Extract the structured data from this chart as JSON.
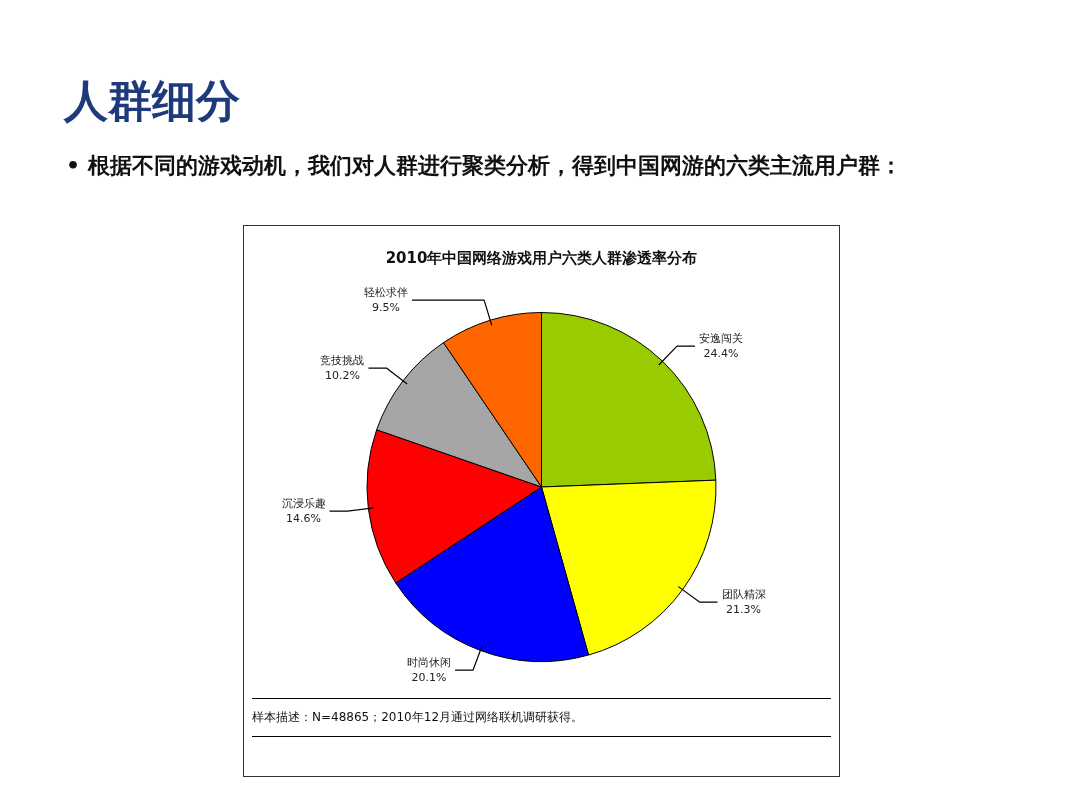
{
  "chart_data": {
    "type": "pie",
    "title": "2010年中国网络游戏用户六类人群渗透率分布",
    "annotations": [
      "人群细分",
      "• 根据不同的游戏动机，我们对人群进行聚类分析，得到中国网游的六类主流用户群：",
      "样本描述：N=48865；2010年12月通过网络联机调研获得。"
    ],
    "categories": [
      "安逸闯关",
      "团队精深",
      "时尚休闲",
      "沉浸乐趣",
      "竞技挑战",
      "轻松求伴"
    ],
    "values": [
      24.4,
      21.3,
      20.1,
      14.6,
      10.2,
      9.5
    ],
    "value_labels": [
      "24.4%",
      "21.3%",
      "20.1%",
      "14.6%",
      "10.2%",
      "9.5%"
    ],
    "colors": [
      "#99cc00",
      "#ffff00",
      "#0000ff",
      "#ff0000",
      "#a6a6a6",
      "#ff6600"
    ],
    "legend": false
  }
}
